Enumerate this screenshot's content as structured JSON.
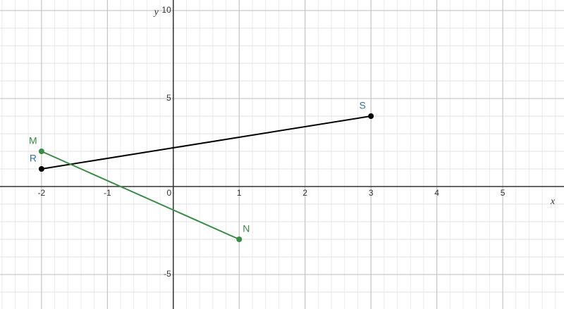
{
  "chart_data": {
    "type": "line",
    "x_label": "x",
    "y_label": "y",
    "xlim": [
      -2.63,
      5.93
    ],
    "ylim": [
      -6.96,
      10.6
    ],
    "xticks": [
      -2,
      -1,
      0,
      1,
      2,
      3,
      4,
      5
    ],
    "yticks": [
      -5,
      5,
      10
    ],
    "grid": true,
    "minor_grid_step": [
      0.2,
      1
    ],
    "series": [
      {
        "labels": [
          "R",
          "S"
        ],
        "x": [
          -2,
          3
        ],
        "values": [
          1,
          4
        ],
        "color": "#000000",
        "label_color": "#2d70b3"
      },
      {
        "labels": [
          "M",
          "N"
        ],
        "x": [
          -2,
          1
        ],
        "values": [
          2,
          -3
        ],
        "color": "#388c46",
        "label_color": "#388c46"
      }
    ]
  }
}
